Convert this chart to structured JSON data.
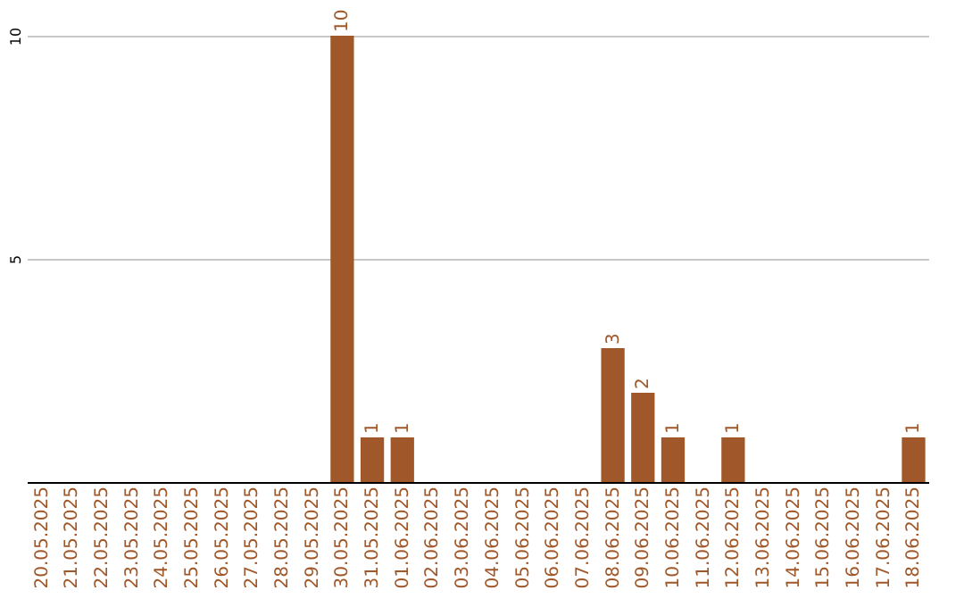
{
  "chart_data": {
    "type": "bar",
    "categories": [
      "20.05.2025",
      "21.05.2025",
      "22.05.2025",
      "23.05.2025",
      "24.05.2025",
      "25.05.2025",
      "26.05.2025",
      "27.05.2025",
      "28.05.2025",
      "29.05.2025",
      "30.05.2025",
      "31.05.2025",
      "01.06.2025",
      "02.06.2025",
      "03.06.2025",
      "04.06.2025",
      "05.06.2025",
      "06.06.2025",
      "07.06.2025",
      "08.06.2025",
      "09.06.2025",
      "10.06.2025",
      "11.06.2025",
      "12.06.2025",
      "13.06.2025",
      "14.06.2025",
      "15.06.2025",
      "16.06.2025",
      "17.06.2025",
      "18.06.2025"
    ],
    "values": [
      0,
      0,
      0,
      0,
      0,
      0,
      0,
      0,
      0,
      0,
      10,
      1,
      1,
      0,
      0,
      0,
      0,
      0,
      0,
      3,
      2,
      1,
      0,
      1,
      0,
      0,
      0,
      0,
      0,
      1
    ],
    "value_labels": [
      null,
      null,
      null,
      null,
      null,
      null,
      null,
      null,
      null,
      null,
      "10",
      "1",
      "1",
      null,
      null,
      null,
      null,
      null,
      null,
      "3",
      "2",
      "1",
      null,
      "1",
      null,
      null,
      null,
      null,
      null,
      "1"
    ],
    "color": "#a0582a",
    "ylim": [
      0,
      10
    ],
    "yticks": [
      5,
      10
    ],
    "grid": "y"
  }
}
